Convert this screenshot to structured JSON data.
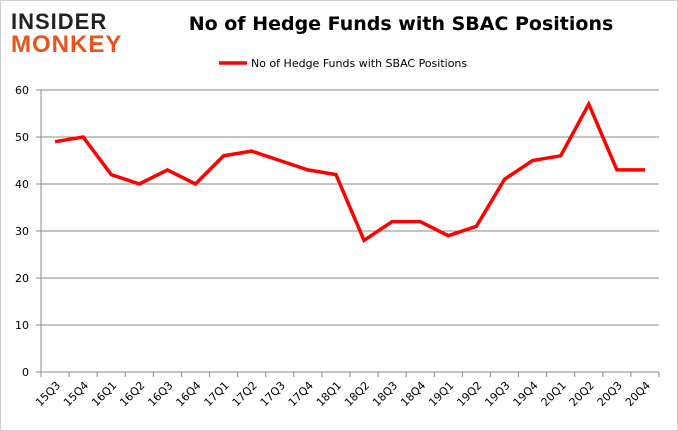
{
  "logo": {
    "line1": "INSIDER",
    "line2": "MONKEY"
  },
  "chart_data": {
    "type": "line",
    "title": "No of Hedge Funds with SBAC Positions",
    "categories": [
      "15Q3",
      "15Q4",
      "16Q1",
      "16Q2",
      "16Q3",
      "16Q4",
      "17Q1",
      "17Q2",
      "17Q3",
      "17Q4",
      "18Q1",
      "18Q2",
      "18Q3",
      "18Q4",
      "19Q1",
      "19Q2",
      "19Q3",
      "19Q4",
      "20Q1",
      "20Q2",
      "20Q3",
      "20Q4"
    ],
    "series": [
      {
        "name": "No of Hedge Funds with SBAC Positions",
        "values": [
          49,
          50,
          42,
          40,
          43,
          40,
          46,
          47,
          45,
          43,
          42,
          28,
          32,
          32,
          29,
          31,
          41,
          45,
          46,
          57,
          43,
          43
        ],
        "color": "#ff0000"
      }
    ],
    "ylim": [
      0,
      60
    ],
    "yticks": [
      0,
      10,
      20,
      30,
      40,
      50,
      60
    ],
    "grid": true,
    "legend": "top",
    "xlabel": "",
    "ylabel": ""
  }
}
